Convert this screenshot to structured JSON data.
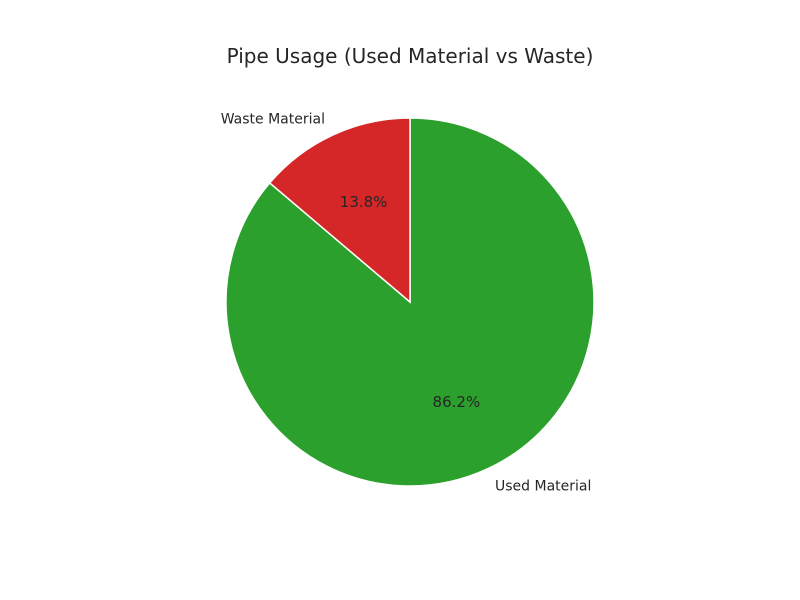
{
  "chart_data": {
    "type": "pie",
    "title": "Pipe Usage (Used Material vs Waste)",
    "categories": [
      "Used Material",
      "Waste Material"
    ],
    "values": [
      86.2,
      13.8
    ],
    "value_labels": [
      "86.2%",
      "13.8%"
    ],
    "colors": [
      "#2ca02c",
      "#d62728"
    ],
    "legend": "none",
    "slice_border_color": "#ffffff"
  }
}
